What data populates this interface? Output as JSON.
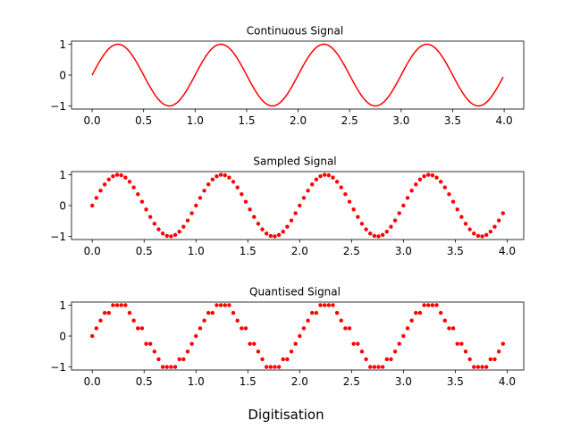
{
  "figure": {
    "suptitle": "Digitisation",
    "series_color": "#ff0000"
  },
  "chart_data": [
    {
      "type": "line",
      "title": "Continuous Signal",
      "function": "sin(2*pi*x)",
      "x_range": [
        0,
        3.99
      ],
      "x_step": 0.01,
      "xlim": [
        -0.2,
        4.19
      ],
      "ylim": [
        -1.1,
        1.1
      ],
      "xticks": [
        0.0,
        0.5,
        1.0,
        1.5,
        2.0,
        2.5,
        3.0,
        3.5,
        4.0
      ],
      "xtick_labels": [
        "0.0",
        "0.5",
        "1.0",
        "1.5",
        "2.0",
        "2.5",
        "3.0",
        "3.5",
        "4.0"
      ],
      "yticks": [
        -1,
        0,
        1
      ],
      "ytick_labels": [
        "−1",
        "0",
        "1"
      ],
      "grid": false
    },
    {
      "type": "scatter",
      "title": "Sampled Signal",
      "function": "sin(2*pi*x)",
      "x_range": [
        0,
        3.96
      ],
      "x_step": 0.04,
      "xlim": [
        -0.2,
        4.16
      ],
      "ylim": [
        -1.1,
        1.1
      ],
      "xticks": [
        0.0,
        0.5,
        1.0,
        1.5,
        2.0,
        2.5,
        3.0,
        3.5,
        4.0
      ],
      "xtick_labels": [
        "0.0",
        "0.5",
        "1.0",
        "1.5",
        "2.0",
        "2.5",
        "3.0",
        "3.5",
        "4.0"
      ],
      "yticks": [
        -1,
        0,
        1
      ],
      "ytick_labels": [
        "−1",
        "0",
        "1"
      ],
      "grid": false
    },
    {
      "type": "scatter",
      "title": "Quantised Signal",
      "function": "round(4*sin(2*pi*x))/4",
      "x_range": [
        0,
        3.96
      ],
      "x_step": 0.04,
      "quantisation_levels": [
        -1,
        -0.75,
        -0.5,
        -0.25,
        0,
        0.25,
        0.5,
        0.75,
        1
      ],
      "xlim": [
        -0.2,
        4.16
      ],
      "ylim": [
        -1.1,
        1.1
      ],
      "xticks": [
        0.0,
        0.5,
        1.0,
        1.5,
        2.0,
        2.5,
        3.0,
        3.5,
        4.0
      ],
      "xtick_labels": [
        "0.0",
        "0.5",
        "1.0",
        "1.5",
        "2.0",
        "2.5",
        "3.0",
        "3.5",
        "4.0"
      ],
      "yticks": [
        -1,
        0,
        1
      ],
      "ytick_labels": [
        "−1",
        "0",
        "1"
      ],
      "grid": false
    }
  ]
}
